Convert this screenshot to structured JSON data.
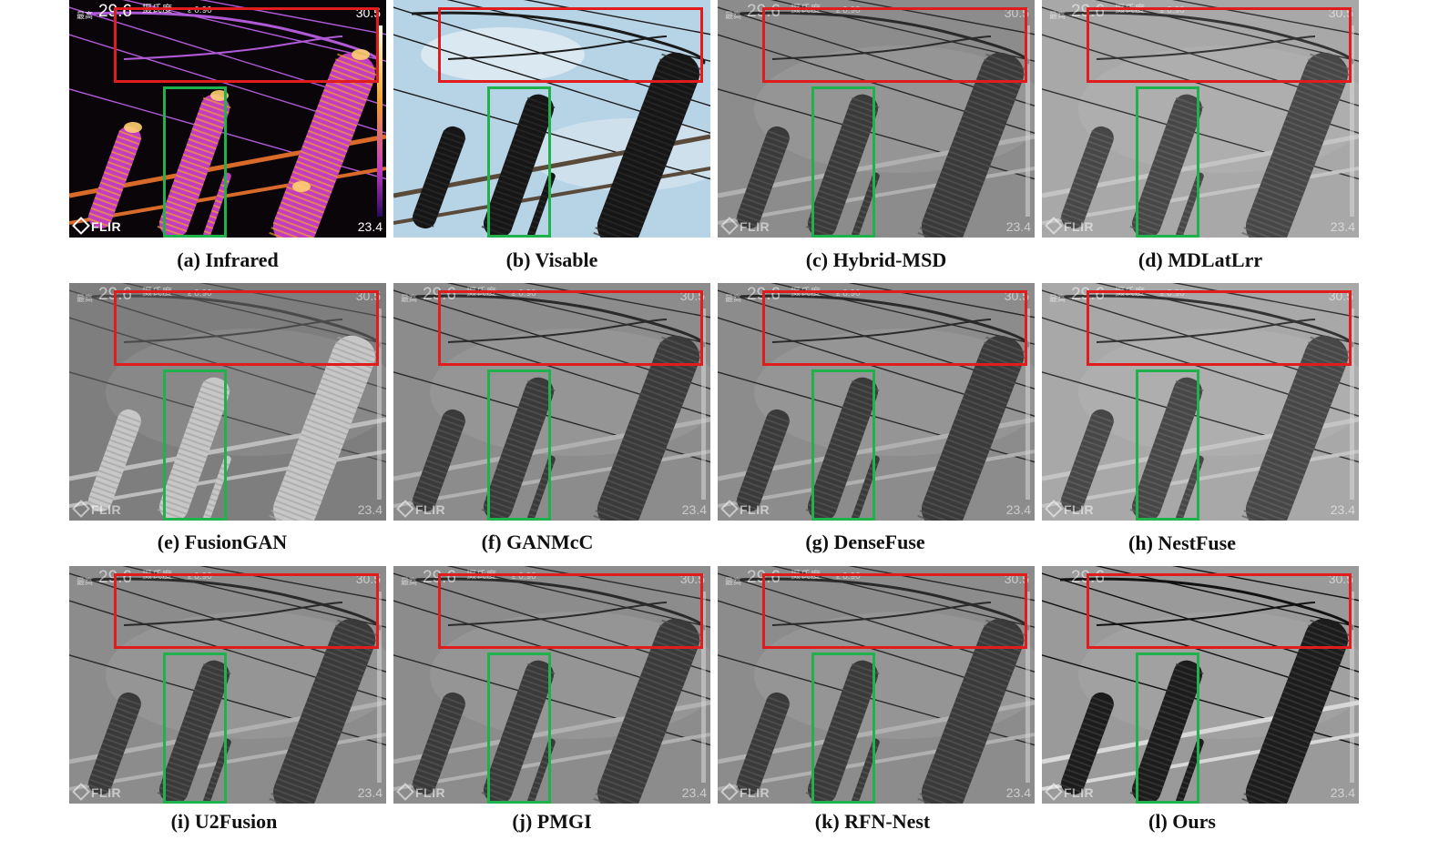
{
  "colors": {
    "roi_red": "#e01c1c",
    "roi_green": "#1fb24c"
  },
  "overlay": {
    "max_value": "29.6",
    "max_label": "最高",
    "unit": "摄氏度",
    "emissivity": "ε 0.90",
    "scale_max": "30.5",
    "scale_min": "23.4",
    "logo": "FLIR"
  },
  "panels": [
    {
      "id": "a",
      "caption": "(a) Infrared",
      "style": "infrared"
    },
    {
      "id": "b",
      "caption": "(b) Visable",
      "style": "visible"
    },
    {
      "id": "c",
      "caption": "(c) Hybrid-MSD",
      "style": "gray"
    },
    {
      "id": "d",
      "caption": "(d) MDLatLrr",
      "style": "gray-light"
    },
    {
      "id": "e",
      "caption": "(e) FusionGAN",
      "style": "gray-flat"
    },
    {
      "id": "f",
      "caption": "(f) GANMcC",
      "style": "gray"
    },
    {
      "id": "g",
      "caption": "(g) DenseFuse",
      "style": "gray"
    },
    {
      "id": "h",
      "caption": "(h) NestFuse",
      "style": "gray-light"
    },
    {
      "id": "i",
      "caption": "(i) U2Fusion",
      "style": "gray"
    },
    {
      "id": "j",
      "caption": "(j) PMGI",
      "style": "gray"
    },
    {
      "id": "k",
      "caption": "(k) RFN-Nest",
      "style": "gray"
    },
    {
      "id": "l",
      "caption": "(l) Ours",
      "style": "gray-contrast"
    }
  ]
}
